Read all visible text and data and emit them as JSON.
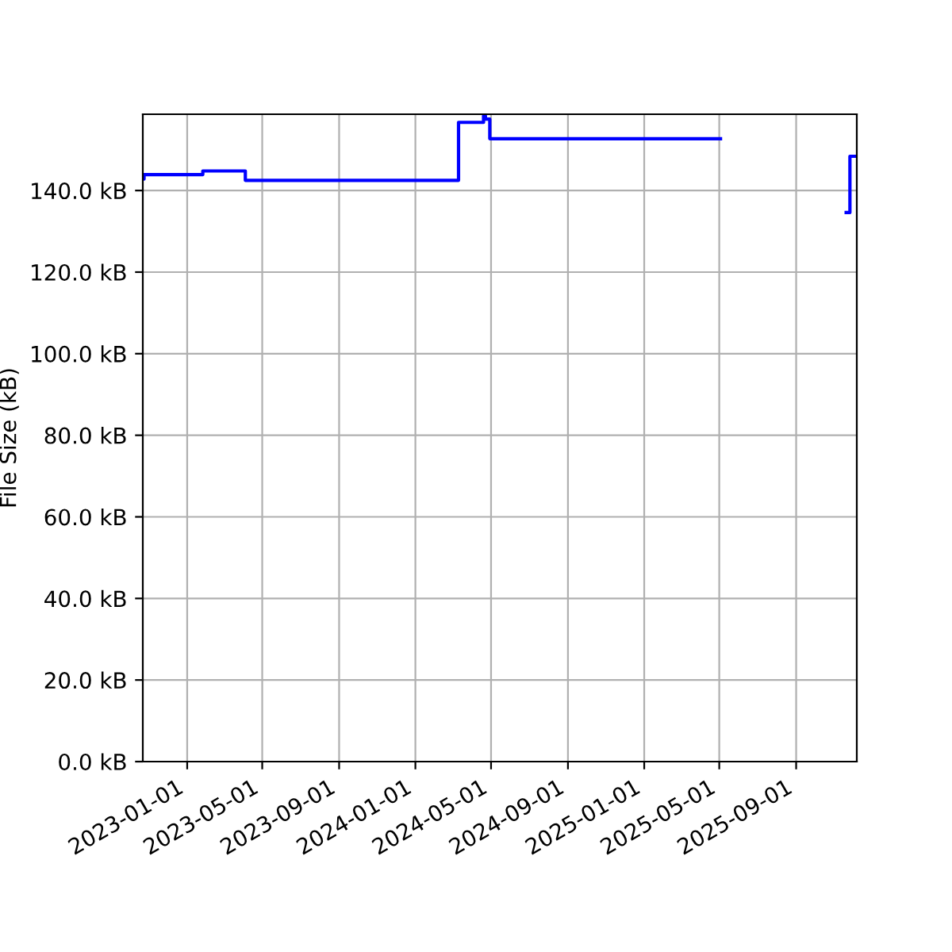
{
  "chart_data": {
    "type": "step",
    "ylabel": "File Size (kB)",
    "x": [
      "2022-10-22",
      "2022-10-24",
      "2023-01-26",
      "2023-04-04",
      "2024-03-10",
      "2024-04-19",
      "2024-04-22",
      "2024-04-29",
      "2025-05-03",
      "2025-11-20",
      "2025-11-26",
      "2025-12-07"
    ],
    "series": [
      {
        "color": "#0000ff",
        "values": [
          142.8,
          143.9,
          144.8,
          142.5,
          156.7,
          158.3,
          157.5,
          152.7,
          null,
          134.6,
          148.4,
          148.4
        ]
      }
    ],
    "xlim": [
      "2022-10-22",
      "2025-12-07"
    ],
    "xticks": [
      "2023-01-01",
      "2023-05-01",
      "2023-09-01",
      "2024-01-01",
      "2024-05-01",
      "2024-09-01",
      "2025-01-01",
      "2025-05-01",
      "2025-09-01"
    ],
    "ylim": [
      0,
      158.7
    ],
    "yticks": [
      {
        "value": 0,
        "label": "0.0 kB"
      },
      {
        "value": 20,
        "label": "20.0 kB"
      },
      {
        "value": 40,
        "label": "40.0 kB"
      },
      {
        "value": 60,
        "label": "60.0 kB"
      },
      {
        "value": 80,
        "label": "80.0 kB"
      },
      {
        "value": 100,
        "label": "100.0 kB"
      },
      {
        "value": 120,
        "label": "120.0 kB"
      },
      {
        "value": 140,
        "label": "140.0 kB"
      }
    ],
    "grid": true,
    "marker": "none",
    "line_style": "solid"
  }
}
